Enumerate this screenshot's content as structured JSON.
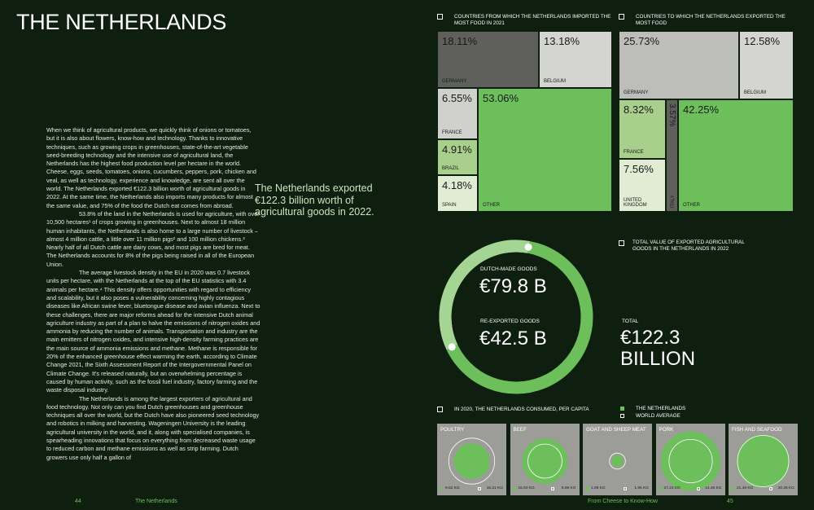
{
  "header": {
    "title": "THE NETHERLANDS"
  },
  "body": {
    "paragraphs": [
      "When we think of agricultural products, we quickly think of onions or tomatoes, but it is also about flowers, know-how and technology. Thanks to innovative techniques, such as growing crops in greenhouses, state-of-the-art vegetable seed-breeding technology and the intensive use of agricultural land, the Netherlands has the highest food production level per hectare in the world. Cheese, eggs, seeds, tomatoes, onions, cucumbers, peppers, pork, chicken and veal, as well as technology, experience and knowledge, are sent all over the world. The Netherlands exported €122.3 billion worth of agricultural goods in 2022. At the same time, the Netherlands also imports many products for almost the same value, and 75% of the food the Dutch eat comes from abroad.",
      "53.8% of the land in the Netherlands is used for agriculture, with over 10,500 hectares¹ of crops growing in greenhouses. Next to almost 18 million human inhabitants, the Netherlands is also home to a large number of livestock – almost 4 million cattle, a little over 11 million pigs² and 100 million chickens.³ Nearly half of all Dutch cattle are dairy cows, and most pigs are bred for meat. The Netherlands accounts for 8% of the pigs being raised in all of the European Union.",
      "The average livestock density in the EU in 2020 was 0.7 livestock units per hectare, with the Netherlands at the top of the EU statistics with 3.4 animals per hectare.⁴ This density offers opportunities with regard to efficiency and scalability, but it also poses a vulnerability concerning highly contagious diseases like African swine fever, bluetongue disease and avian influenza. Next to these challenges, there are major reforms ahead for the intensive Dutch animal agriculture industry as part of a plan to halve the emissions of nitrogen oxides and ammonia by reducing the number of animals. Transportation and industry are the main emitters of nitrogen oxides, and intensive high-density farming practices are the main source of ammonia emissions and methane. Methane is responsible for 20% of the enhanced greenhouse effect warming the earth, according to Climate Change 2021, the Sixth Assessment Report of the Intergovernmental Panel on Climate Change. It's released naturally, but an overwhelming percentage is caused by human activity, such as the fossil fuel industry, factory farming and the waste disposal industry.",
      "The Netherlands is among the largest exporters of agricultural and food technology. Not only can you find Dutch greenhouses and greenhouse techniques all over the world, but the Dutch have also pioneered seed technology and robotics in milking and harvesting. Wageningen University is the leading agricultural university in the world, and it, along with specialised companies, is spearheading innovations that focus on everything from decreased waste usage to reduced carbon and methane emissions as well as strip farming. Dutch growers use only half a gallon of"
    ]
  },
  "pull_quote": "The Netherlands exported €122.3 billion worth of agricultural goods in 2022.",
  "imports": {
    "title": "COUNTRIES FROM WHICH THE NETHERLANDS IMPORTED THE MOST FOOD IN 2021",
    "cells": [
      {
        "label": "GERMANY",
        "value": "18.11%"
      },
      {
        "label": "BELGIUM",
        "value": "13.18%"
      },
      {
        "label": "FRANCE",
        "value": "6.55%"
      },
      {
        "label": "BRAZIL",
        "value": "4.91%"
      },
      {
        "label": "SPAIN",
        "value": "4.18%"
      },
      {
        "label": "OTHER",
        "value": "53.06%"
      }
    ]
  },
  "exports": {
    "title": "COUNTRIES TO WHICH THE NETHERLANDS EXPORTED THE MOST FOOD",
    "cells": [
      {
        "label": "GERMANY",
        "value": "25.73%"
      },
      {
        "label": "BELGIUM",
        "value": "12.58%"
      },
      {
        "label": "FRANCE",
        "value": "8.32%"
      },
      {
        "label": "UNITED KINGDOM",
        "value": "7.56%"
      },
      {
        "label": "ITALY",
        "value": "3.57%"
      },
      {
        "label": "OTHER",
        "value": "42.25%"
      }
    ]
  },
  "total": {
    "title": "TOTAL VALUE OF EXPORTED AGRICULTURAL GOODS IN THE NETHERLANDS IN 2022",
    "dutch_made": {
      "label": "DUTCH-MADE GOODS",
      "value": "€79.8 B"
    },
    "re_exported": {
      "label": "RE-EXPORTED GOODS",
      "value": "€42.5 B"
    },
    "total_label": "TOTAL",
    "total_value": "€122.3 BILLION"
  },
  "consumption": {
    "title": "IN 2020, THE NETHERLANDS CONSUMED, PER CAPITA",
    "legend": [
      "THE NETHERLANDS",
      "WORLD AVERAGE"
    ],
    "panels": [
      {
        "label": "POULTRY",
        "netherlands": "9.82 KG",
        "world": "16.21 KG"
      },
      {
        "label": "BEEF",
        "netherlands": "15.93 KG",
        "world": "8.98 KG"
      },
      {
        "label": "GOAT AND SHEEP MEAT",
        "netherlands": "1.09 KG",
        "world": "1.96 KG"
      },
      {
        "label": "PORK",
        "netherlands": "27.23 KG",
        "world": "14.45 KG"
      },
      {
        "label": "FISH AND SEAFOOD",
        "netherlands": "21.48 KG",
        "world": "20.25 KG"
      }
    ]
  },
  "footer": {
    "left_page": "44",
    "left_title": "The Netherlands",
    "right_title": "From Cheese to Know-How",
    "right_page": "45"
  }
}
